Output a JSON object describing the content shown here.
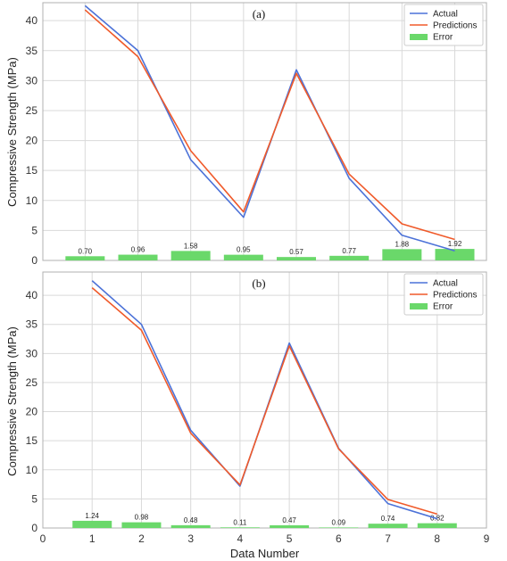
{
  "xlabel": "Data Number",
  "colors": {
    "actual": "#4c72d8",
    "predictions": "#f05a2a",
    "error": "#6ad86a",
    "grid": "#d9d9d9",
    "axes": "#b0b0b0"
  },
  "chart_data": [
    {
      "type": "line",
      "title": "(a)",
      "ylabel": "Compressive Strength (MPa)",
      "xlabel": "",
      "x": [
        1,
        2,
        3,
        4,
        5,
        6,
        7,
        8
      ],
      "xlim": [
        0.2,
        8.6
      ],
      "ylim": [
        0,
        43
      ],
      "yticks": [
        0,
        5,
        10,
        15,
        20,
        25,
        30,
        35,
        40
      ],
      "xticks": [],
      "grid": true,
      "legend": "top-right",
      "series": [
        {
          "name": "Actual",
          "kind": "line",
          "values": [
            42.5,
            35.0,
            16.8,
            7.2,
            31.8,
            13.7,
            4.2,
            1.6
          ]
        },
        {
          "name": "Predictions",
          "kind": "line",
          "values": [
            41.8,
            34.0,
            18.3,
            8.1,
            31.2,
            14.4,
            6.1,
            3.5
          ]
        },
        {
          "name": "Error",
          "kind": "bar",
          "values": [
            0.7,
            0.96,
            1.58,
            0.95,
            0.57,
            0.77,
            1.88,
            1.92
          ],
          "labels": [
            "0.70",
            "0.96",
            "1.58",
            "0.95",
            "0.57",
            "0.77",
            "1.88",
            "1.92"
          ]
        }
      ]
    },
    {
      "type": "line",
      "title": "(b)",
      "ylabel": "Compressive Strength (MPa)",
      "xlabel": "Data Number",
      "x": [
        1,
        2,
        3,
        4,
        5,
        6,
        7,
        8
      ],
      "xlim": [
        0,
        9
      ],
      "ylim": [
        0,
        44
      ],
      "yticks": [
        0,
        5,
        10,
        15,
        20,
        25,
        30,
        35,
        40
      ],
      "xticks": [
        0,
        1,
        2,
        3,
        4,
        5,
        6,
        7,
        8,
        9
      ],
      "grid": true,
      "legend": "top-right",
      "series": [
        {
          "name": "Actual",
          "kind": "line",
          "values": [
            42.5,
            35.0,
            16.8,
            7.2,
            31.8,
            13.7,
            4.2,
            1.6
          ]
        },
        {
          "name": "Predictions",
          "kind": "line",
          "values": [
            41.3,
            34.0,
            16.3,
            7.4,
            31.3,
            13.6,
            4.9,
            2.4
          ]
        },
        {
          "name": "Error",
          "kind": "bar",
          "values": [
            1.24,
            0.98,
            0.48,
            0.11,
            0.47,
            0.09,
            0.74,
            0.82
          ],
          "labels": [
            "1.24",
            "0.98",
            "0.48",
            "0.11",
            "0.47",
            "0.09",
            "0.74",
            "0.82"
          ]
        }
      ]
    }
  ]
}
